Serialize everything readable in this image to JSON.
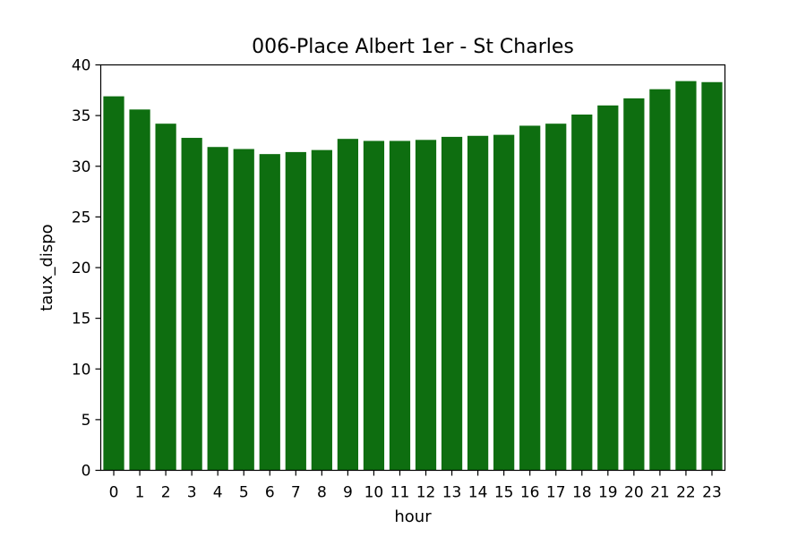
{
  "chart_data": {
    "type": "bar",
    "title": "006-Place Albert 1er - St Charles",
    "xlabel": "hour",
    "ylabel": "taux_dispo",
    "categories": [
      "0",
      "1",
      "2",
      "3",
      "4",
      "5",
      "6",
      "7",
      "8",
      "9",
      "10",
      "11",
      "12",
      "13",
      "14",
      "15",
      "16",
      "17",
      "18",
      "19",
      "20",
      "21",
      "22",
      "23"
    ],
    "values": [
      36.9,
      35.6,
      34.2,
      32.8,
      31.9,
      31.7,
      31.2,
      31.4,
      31.6,
      32.7,
      32.5,
      32.5,
      32.6,
      32.9,
      33.0,
      33.1,
      34.0,
      34.2,
      35.1,
      36.0,
      36.7,
      37.6,
      38.4,
      38.3
    ],
    "ylim": [
      0,
      40
    ],
    "yticks": [
      0,
      5,
      10,
      15,
      20,
      25,
      30,
      35,
      40
    ],
    "bar_color": "#0e6e10",
    "grid": false,
    "legend": "none"
  }
}
